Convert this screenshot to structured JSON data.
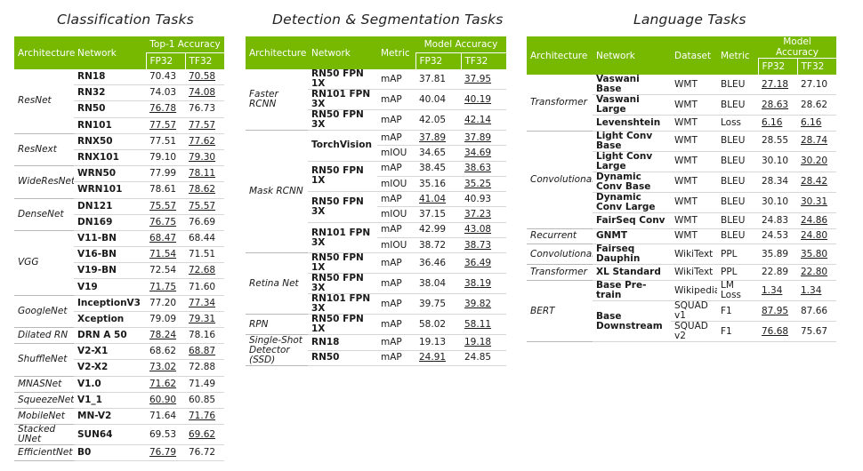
{
  "titles": {
    "classification": "Classification Tasks",
    "detection": "Detection & Segmentation Tasks",
    "language": "Language Tasks"
  },
  "colors": {
    "header": "#76b900"
  },
  "classification": {
    "headers": {
      "architecture": "Architecture",
      "network": "Network",
      "accuracy": "Top-1 Accuracy",
      "fp32": "FP32",
      "tf32": "TF32"
    },
    "groups": [
      {
        "arch": "ResNet",
        "rows": [
          {
            "network": "RN18",
            "fp32": "70.43",
            "tf32": "70.58",
            "u": [
              false,
              true
            ]
          },
          {
            "network": "RN32",
            "fp32": "74.03",
            "tf32": "74.08",
            "u": [
              false,
              true
            ]
          },
          {
            "network": "RN50",
            "fp32": "76.78",
            "tf32": "76.73",
            "u": [
              true,
              false
            ]
          },
          {
            "network": "RN101",
            "fp32": "77.57",
            "tf32": "77.57",
            "u": [
              true,
              true
            ]
          }
        ]
      },
      {
        "arch": "ResNext",
        "rows": [
          {
            "network": "RNX50",
            "fp32": "77.51",
            "tf32": "77.62",
            "u": [
              false,
              true
            ]
          },
          {
            "network": "RNX101",
            "fp32": "79.10",
            "tf32": "79.30",
            "u": [
              false,
              true
            ]
          }
        ]
      },
      {
        "arch": "WideResNet",
        "rows": [
          {
            "network": "WRN50",
            "fp32": "77.99",
            "tf32": "78.11",
            "u": [
              false,
              true
            ]
          },
          {
            "network": "WRN101",
            "fp32": "78.61",
            "tf32": "78.62",
            "u": [
              false,
              true
            ]
          }
        ]
      },
      {
        "arch": "DenseNet",
        "rows": [
          {
            "network": "DN121",
            "fp32": "75.57",
            "tf32": "75.57",
            "u": [
              true,
              true
            ]
          },
          {
            "network": "DN169",
            "fp32": "76.75",
            "tf32": "76.69",
            "u": [
              true,
              false
            ]
          }
        ]
      },
      {
        "arch": "VGG",
        "rows": [
          {
            "network": "V11-BN",
            "fp32": "68.47",
            "tf32": "68.44",
            "u": [
              true,
              false
            ]
          },
          {
            "network": "V16-BN",
            "fp32": "71.54",
            "tf32": "71.51",
            "u": [
              true,
              false
            ]
          },
          {
            "network": "V19-BN",
            "fp32": "72.54",
            "tf32": "72.68",
            "u": [
              false,
              true
            ]
          },
          {
            "network": "V19",
            "fp32": "71.75",
            "tf32": "71.60",
            "u": [
              true,
              false
            ]
          }
        ]
      },
      {
        "arch": "GoogleNet",
        "rows": [
          {
            "network": "InceptionV3",
            "fp32": "77.20",
            "tf32": "77.34",
            "u": [
              false,
              true
            ]
          },
          {
            "network": "Xception",
            "fp32": "79.09",
            "tf32": "79.31",
            "u": [
              false,
              true
            ]
          }
        ]
      },
      {
        "arch": "Dilated RN",
        "rows": [
          {
            "network": "DRN A 50",
            "fp32": "78.24",
            "tf32": "78.16",
            "u": [
              true,
              false
            ]
          }
        ]
      },
      {
        "arch": "ShuffleNet",
        "rows": [
          {
            "network": "V2-X1",
            "fp32": "68.62",
            "tf32": "68.87",
            "u": [
              false,
              true
            ]
          },
          {
            "network": "V2-X2",
            "fp32": "73.02",
            "tf32": "72.88",
            "u": [
              true,
              false
            ]
          }
        ]
      },
      {
        "arch": "MNASNet",
        "rows": [
          {
            "network": "V1.0",
            "fp32": "71.62",
            "tf32": "71.49",
            "u": [
              true,
              false
            ]
          }
        ]
      },
      {
        "arch": "SqueezeNet",
        "rows": [
          {
            "network": "V1_1",
            "fp32": "60.90",
            "tf32": "60.85",
            "u": [
              true,
              false
            ]
          }
        ]
      },
      {
        "arch": "MobileNet",
        "rows": [
          {
            "network": "MN-V2",
            "fp32": "71.64",
            "tf32": "71.76",
            "u": [
              false,
              true
            ]
          }
        ]
      },
      {
        "arch": "Stacked UNet",
        "rows": [
          {
            "network": "SUN64",
            "fp32": "69.53",
            "tf32": "69.62",
            "u": [
              false,
              true
            ]
          }
        ]
      },
      {
        "arch": "EfficientNet",
        "rows": [
          {
            "network": "B0",
            "fp32": "76.79",
            "tf32": "76.72",
            "u": [
              true,
              false
            ]
          }
        ]
      }
    ]
  },
  "detection": {
    "headers": {
      "architecture": "Architecture",
      "network": "Network",
      "metric": "Metric",
      "accuracy": "Model Accuracy",
      "fp32": "FP32",
      "tf32": "TF32"
    },
    "groups": [
      {
        "arch": "Faster RCNN",
        "networks": [
          {
            "name": "RN50 FPN 1X",
            "rows": [
              {
                "metric": "mAP",
                "fp32": "37.81",
                "tf32": "37.95",
                "u": [
                  false,
                  true
                ]
              }
            ]
          },
          {
            "name": "RN101 FPN 3X",
            "rows": [
              {
                "metric": "mAP",
                "fp32": "40.04",
                "tf32": "40.19",
                "u": [
                  false,
                  true
                ]
              }
            ]
          },
          {
            "name": "RN50 FPN 3X",
            "rows": [
              {
                "metric": "mAP",
                "fp32": "42.05",
                "tf32": "42.14",
                "u": [
                  false,
                  true
                ]
              }
            ]
          }
        ]
      },
      {
        "arch": "Mask RCNN",
        "networks": [
          {
            "name": "TorchVision",
            "rows": [
              {
                "metric": "mAP",
                "fp32": "37.89",
                "tf32": "37.89",
                "u": [
                  true,
                  true
                ]
              },
              {
                "metric": "mIOU",
                "fp32": "34.65",
                "tf32": "34.69",
                "u": [
                  false,
                  true
                ]
              }
            ]
          },
          {
            "name": "RN50 FPN 1X",
            "rows": [
              {
                "metric": "mAP",
                "fp32": "38.45",
                "tf32": "38.63",
                "u": [
                  false,
                  true
                ]
              },
              {
                "metric": "mIOU",
                "fp32": "35.16",
                "tf32": "35.25",
                "u": [
                  false,
                  true
                ]
              }
            ]
          },
          {
            "name": "RN50 FPN 3X",
            "rows": [
              {
                "metric": "mAP",
                "fp32": "41.04",
                "tf32": "40.93",
                "u": [
                  true,
                  false
                ]
              },
              {
                "metric": "mIOU",
                "fp32": "37.15",
                "tf32": "37.23",
                "u": [
                  false,
                  true
                ]
              }
            ]
          },
          {
            "name": "RN101 FPN 3X",
            "rows": [
              {
                "metric": "mAP",
                "fp32": "42.99",
                "tf32": "43.08",
                "u": [
                  false,
                  true
                ]
              },
              {
                "metric": "mIOU",
                "fp32": "38.72",
                "tf32": "38.73",
                "u": [
                  false,
                  true
                ]
              }
            ]
          }
        ]
      },
      {
        "arch": "Retina Net",
        "networks": [
          {
            "name": "RN50 FPN 1X",
            "rows": [
              {
                "metric": "mAP",
                "fp32": "36.46",
                "tf32": "36.49",
                "u": [
                  false,
                  true
                ]
              }
            ]
          },
          {
            "name": "RN50 FPN 3X",
            "rows": [
              {
                "metric": "mAP",
                "fp32": "38.04",
                "tf32": "38.19",
                "u": [
                  false,
                  true
                ]
              }
            ]
          },
          {
            "name": "RN101 FPN 3X",
            "rows": [
              {
                "metric": "mAP",
                "fp32": "39.75",
                "tf32": "39.82",
                "u": [
                  false,
                  true
                ]
              }
            ]
          }
        ]
      },
      {
        "arch": "RPN",
        "networks": [
          {
            "name": "RN50 FPN 1X",
            "rows": [
              {
                "metric": "mAP",
                "fp32": "58.02",
                "tf32": "58.11",
                "u": [
                  false,
                  true
                ]
              }
            ]
          }
        ]
      },
      {
        "arch": "Single-Shot Detector (SSD)",
        "networks": [
          {
            "name": "RN18",
            "rows": [
              {
                "metric": "mAP",
                "fp32": "19.13",
                "tf32": "19.18",
                "u": [
                  false,
                  true
                ]
              }
            ]
          },
          {
            "name": "RN50",
            "rows": [
              {
                "metric": "mAP",
                "fp32": "24.91",
                "tf32": "24.85",
                "u": [
                  true,
                  false
                ]
              }
            ]
          }
        ]
      }
    ]
  },
  "language": {
    "headers": {
      "architecture": "Architecture",
      "network": "Network",
      "dataset": "Dataset",
      "metric": "Metric",
      "accuracy": "Model Accuracy",
      "fp32": "FP32",
      "tf32": "TF32"
    },
    "groups": [
      {
        "arch": "Transformer",
        "networks": [
          {
            "name": "Vaswani Base",
            "rows": [
              {
                "dataset": "WMT",
                "metric": "BLEU",
                "fp32": "27.18",
                "tf32": "27.10",
                "u": [
                  true,
                  false
                ]
              }
            ]
          },
          {
            "name": "Vaswani Large",
            "rows": [
              {
                "dataset": "WMT",
                "metric": "BLEU",
                "fp32": "28.63",
                "tf32": "28.62",
                "u": [
                  true,
                  false
                ]
              }
            ]
          },
          {
            "name": "Levenshtein",
            "rows": [
              {
                "dataset": "WMT",
                "metric": "Loss",
                "fp32": "6.16",
                "tf32": "6.16",
                "u": [
                  true,
                  true
                ]
              }
            ]
          }
        ]
      },
      {
        "arch": "Convolutional",
        "networks": [
          {
            "name": "Light Conv Base",
            "rows": [
              {
                "dataset": "WMT",
                "metric": "BLEU",
                "fp32": "28.55",
                "tf32": "28.74",
                "u": [
                  false,
                  true
                ]
              }
            ]
          },
          {
            "name": "Light Conv Large",
            "rows": [
              {
                "dataset": "WMT",
                "metric": "BLEU",
                "fp32": "30.10",
                "tf32": "30.20",
                "u": [
                  false,
                  true
                ]
              }
            ]
          },
          {
            "name": "Dynamic Conv Base",
            "rows": [
              {
                "dataset": "WMT",
                "metric": "BLEU",
                "fp32": "28.34",
                "tf32": "28.42",
                "u": [
                  false,
                  true
                ]
              }
            ]
          },
          {
            "name": "Dynamic Conv Large",
            "rows": [
              {
                "dataset": "WMT",
                "metric": "BLEU",
                "fp32": "30.10",
                "tf32": "30.31",
                "u": [
                  false,
                  true
                ]
              }
            ]
          },
          {
            "name": "FairSeq Conv",
            "rows": [
              {
                "dataset": "WMT",
                "metric": "BLEU",
                "fp32": "24.83",
                "tf32": "24.86",
                "u": [
                  false,
                  true
                ]
              }
            ]
          }
        ]
      },
      {
        "arch": "Recurrent",
        "networks": [
          {
            "name": "GNMT",
            "rows": [
              {
                "dataset": "WMT",
                "metric": "BLEU",
                "fp32": "24.53",
                "tf32": "24.80",
                "u": [
                  false,
                  true
                ]
              }
            ]
          }
        ]
      },
      {
        "arch": "Convolutional",
        "networks": [
          {
            "name": "Fairseq Dauphin",
            "rows": [
              {
                "dataset": "WikiText",
                "metric": "PPL",
                "fp32": "35.89",
                "tf32": "35.80",
                "u": [
                  false,
                  true
                ]
              }
            ]
          }
        ]
      },
      {
        "arch": "Transformer",
        "networks": [
          {
            "name": "XL Standard",
            "rows": [
              {
                "dataset": "WikiText",
                "metric": "PPL",
                "fp32": "22.89",
                "tf32": "22.80",
                "u": [
                  false,
                  true
                ]
              }
            ]
          }
        ]
      },
      {
        "arch": "BERT",
        "networks": [
          {
            "name": "Base Pre-train",
            "rows": [
              {
                "dataset": "Wikipedia",
                "metric": "LM Loss",
                "fp32": "1.34",
                "tf32": "1.34",
                "u": [
                  true,
                  true
                ]
              }
            ]
          },
          {
            "name": "Base Downstream",
            "rows": [
              {
                "dataset": "SQUAD v1",
                "metric": "F1",
                "fp32": "87.95",
                "tf32": "87.66",
                "u": [
                  true,
                  false
                ]
              },
              {
                "dataset": "SQUAD v2",
                "metric": "F1",
                "fp32": "76.68",
                "tf32": "75.67",
                "u": [
                  true,
                  false
                ]
              }
            ]
          }
        ]
      }
    ]
  }
}
